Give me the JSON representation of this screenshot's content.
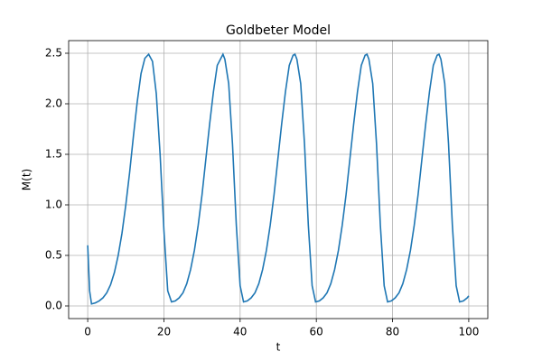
{
  "chart_data": {
    "type": "line",
    "title": "Goldbeter Model",
    "x_label": "t",
    "y_label": "M(t)",
    "x": [
      0,
      0.5,
      1,
      2,
      3,
      4,
      5,
      6,
      7,
      8,
      9,
      10,
      11,
      12,
      13,
      14,
      15,
      16,
      17,
      18,
      19,
      20,
      21,
      22,
      23,
      24,
      25,
      26,
      27,
      28,
      29,
      30,
      31,
      32,
      33,
      34,
      35.5,
      36,
      37,
      38,
      39,
      40,
      40.9,
      41.9,
      42.9,
      43.9,
      44.9,
      45.9,
      46.9,
      47.9,
      48.9,
      49.9,
      50.9,
      51.9,
      52.9,
      53.9,
      54.4,
      54.9,
      55.9,
      56.9,
      57.9,
      58.9,
      59.8,
      60.8,
      61.8,
      62.8,
      63.8,
      64.8,
      65.8,
      66.8,
      67.8,
      68.8,
      69.8,
      70.8,
      71.8,
      72.8,
      73.3,
      73.8,
      74.8,
      75.8,
      76.8,
      77.8,
      78.7,
      79.7,
      80.7,
      81.7,
      82.7,
      83.7,
      84.7,
      85.7,
      86.7,
      87.7,
      88.7,
      89.7,
      90.7,
      91.7,
      92.2,
      92.7,
      93.7,
      94.7,
      95.7,
      96.7,
      97.6,
      98.6,
      99.6,
      100
    ],
    "series": [
      {
        "name": "M(t)",
        "color": "#1f77b4",
        "values": [
          0.6,
          0.15,
          0.02,
          0.03,
          0.05,
          0.08,
          0.13,
          0.21,
          0.33,
          0.5,
          0.72,
          1.0,
          1.32,
          1.68,
          2.02,
          2.3,
          2.45,
          2.49,
          2.42,
          2.1,
          1.5,
          0.75,
          0.15,
          0.04,
          0.05,
          0.08,
          0.13,
          0.22,
          0.36,
          0.55,
          0.8,
          1.1,
          1.45,
          1.8,
          2.12,
          2.38,
          2.49,
          2.44,
          2.2,
          1.6,
          0.8,
          0.2,
          0.04,
          0.05,
          0.08,
          0.13,
          0.22,
          0.36,
          0.55,
          0.8,
          1.1,
          1.45,
          1.8,
          2.12,
          2.38,
          2.48,
          2.49,
          2.44,
          2.2,
          1.6,
          0.8,
          0.2,
          0.04,
          0.05,
          0.08,
          0.13,
          0.22,
          0.36,
          0.55,
          0.8,
          1.1,
          1.45,
          1.8,
          2.12,
          2.38,
          2.48,
          2.49,
          2.44,
          2.2,
          1.6,
          0.8,
          0.2,
          0.04,
          0.05,
          0.08,
          0.13,
          0.22,
          0.36,
          0.55,
          0.8,
          1.1,
          1.45,
          1.8,
          2.12,
          2.38,
          2.48,
          2.49,
          2.44,
          2.2,
          1.6,
          0.8,
          0.2,
          0.04,
          0.05,
          0.08,
          0.1
        ]
      }
    ],
    "xlim": [
      -5,
      105
    ],
    "ylim": [
      -0.125,
      2.625
    ],
    "xticks": [
      0,
      20,
      40,
      60,
      80,
      100
    ],
    "yticks": [
      {
        "value": 0,
        "label": "0.0"
      },
      0.5,
      {
        "value": 1,
        "label": "1.0"
      },
      1.5,
      {
        "value": 2,
        "label": "2.0"
      },
      2.5
    ],
    "grid": true
  }
}
